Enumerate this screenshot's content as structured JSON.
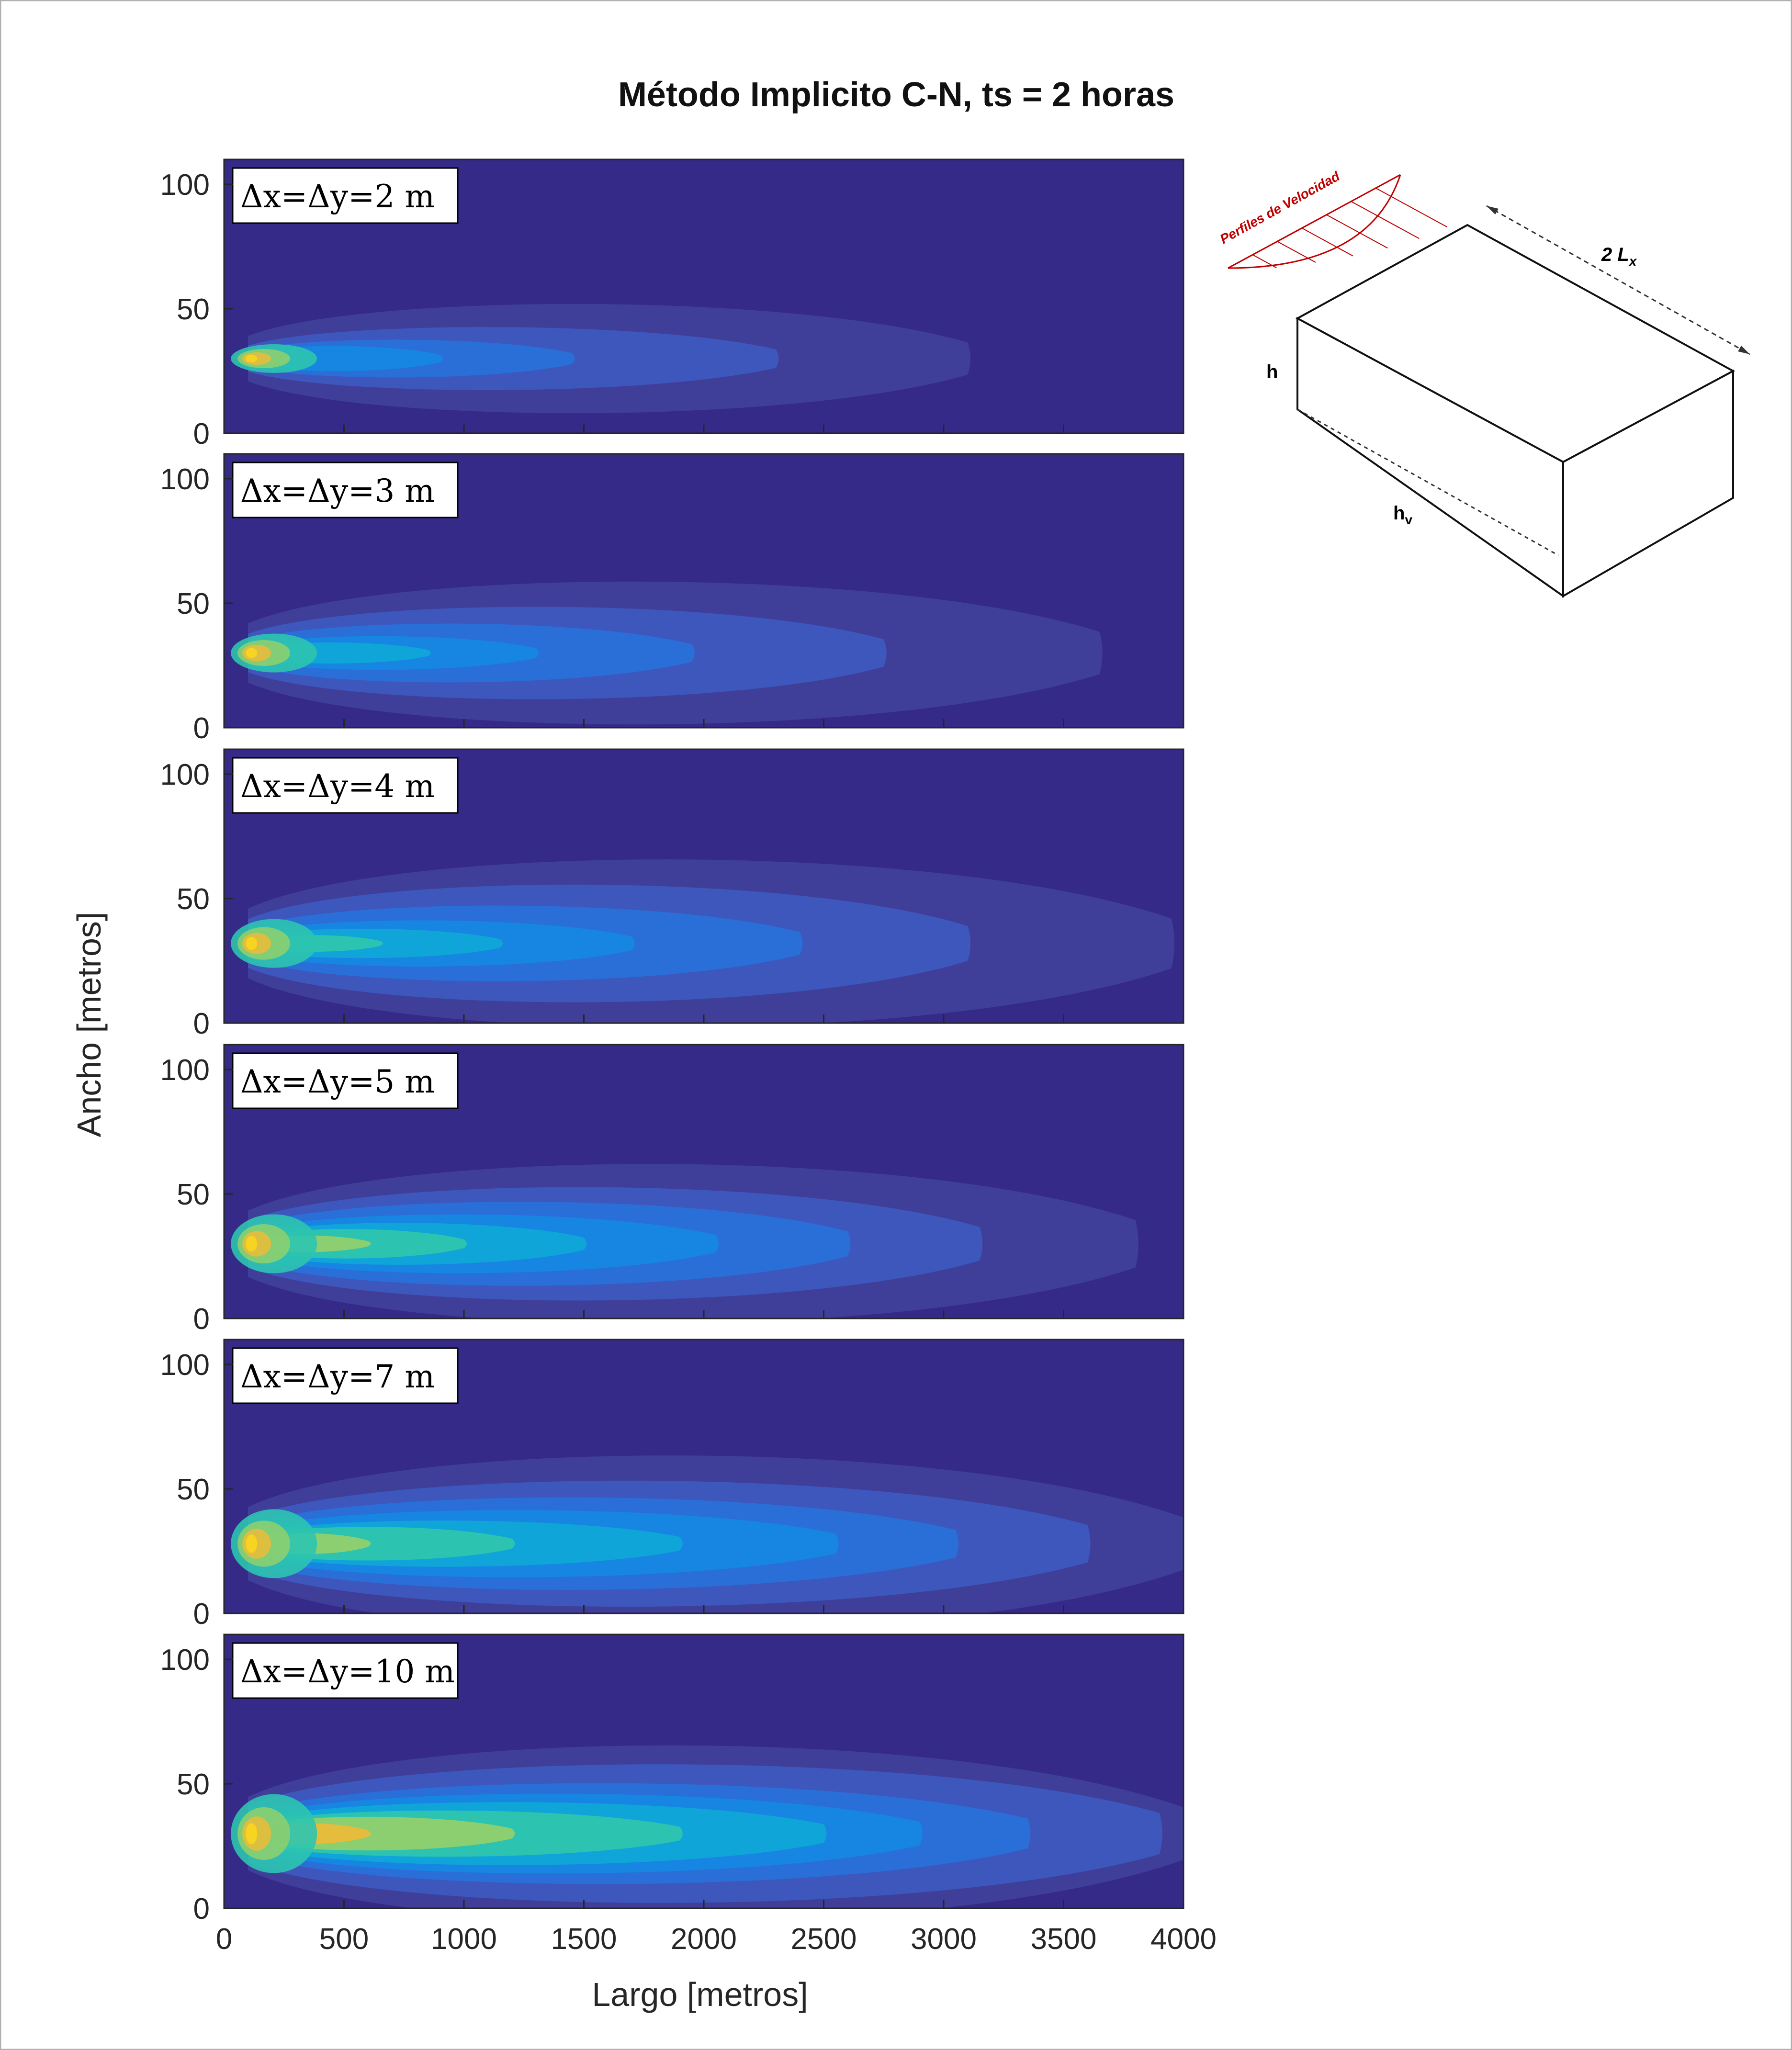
{
  "chart_data": {
    "type": "heatmap",
    "title": "Método Implicito C-N, ts = 2  horas",
    "xlabel": "Largo [metros]",
    "ylabel": "Ancho [metros]",
    "xlim": [
      0,
      4000
    ],
    "ylim": [
      0,
      110
    ],
    "xticks": [
      0,
      500,
      1000,
      1500,
      2000,
      2500,
      3000,
      3500,
      4000
    ],
    "yticks": [
      0,
      50,
      100
    ],
    "colormap": [
      "#352a87",
      "#3f3f9a",
      "#3d57bd",
      "#2a6fd8",
      "#1785e2",
      "#0fa5d8",
      "#2cc4b0",
      "#8bcf70",
      "#e6bc3c",
      "#f9d51f"
    ],
    "source": {
      "x": 100,
      "y": 30
    },
    "panels": [
      {
        "label": "Δx=Δy=2  m",
        "ymid": 30,
        "contours": [
          {
            "xend": 3100,
            "halfwidth": 26
          },
          {
            "xend": 2300,
            "halfwidth": 15
          },
          {
            "xend": 1450,
            "halfwidth": 9
          },
          {
            "xend": 900,
            "halfwidth": 6
          }
        ]
      },
      {
        "label": "Δx=Δy=3  m",
        "ymid": 30,
        "contours": [
          {
            "xend": 3650,
            "halfwidth": 34
          },
          {
            "xend": 2750,
            "halfwidth": 22
          },
          {
            "xend": 1950,
            "halfwidth": 14
          },
          {
            "xend": 1300,
            "halfwidth": 8
          },
          {
            "xend": 850,
            "halfwidth": 5
          }
        ]
      },
      {
        "label": "Δx=Δy=4  m",
        "ymid": 32,
        "contours": [
          {
            "xend": 3950,
            "halfwidth": 40
          },
          {
            "xend": 3100,
            "halfwidth": 28
          },
          {
            "xend": 2400,
            "halfwidth": 18
          },
          {
            "xend": 1700,
            "halfwidth": 11
          },
          {
            "xend": 1150,
            "halfwidth": 7
          },
          {
            "xend": 650,
            "halfwidth": 4
          }
        ]
      },
      {
        "label": "Δx=Δy=5  m",
        "ymid": 30,
        "contours": [
          {
            "xend": 3800,
            "halfwidth": 38
          },
          {
            "xend": 3150,
            "halfwidth": 27
          },
          {
            "xend": 2600,
            "halfwidth": 20
          },
          {
            "xend": 2050,
            "halfwidth": 14
          },
          {
            "xend": 1500,
            "halfwidth": 10
          },
          {
            "xend": 1000,
            "halfwidth": 7
          },
          {
            "xend": 600,
            "halfwidth": 4
          }
        ]
      },
      {
        "label": "Δx=Δy=7  m",
        "ymid": 28,
        "contours": [
          {
            "xend": 4000,
            "halfwidth": 42
          },
          {
            "xend": 3600,
            "halfwidth": 30
          },
          {
            "xend": 3050,
            "halfwidth": 22
          },
          {
            "xend": 2550,
            "halfwidth": 16
          },
          {
            "xend": 1900,
            "halfwidth": 11
          },
          {
            "xend": 1200,
            "halfwidth": 8
          },
          {
            "xend": 600,
            "halfwidth": 5
          }
        ]
      },
      {
        "label": "Δx=Δy=10  m",
        "ymid": 30,
        "contours": [
          {
            "xend": 4000,
            "halfwidth": 42
          },
          {
            "xend": 3900,
            "halfwidth": 33
          },
          {
            "xend": 3350,
            "halfwidth": 24
          },
          {
            "xend": 2900,
            "halfwidth": 19
          },
          {
            "xend": 2500,
            "halfwidth": 15
          },
          {
            "xend": 1900,
            "halfwidth": 11
          },
          {
            "xend": 1200,
            "halfwidth": 8
          },
          {
            "xend": 600,
            "halfwidth": 5
          }
        ]
      }
    ]
  },
  "diagram": {
    "profile_label": "Perfiles de Velocidad",
    "length_label": "2 L",
    "length_sub": "x",
    "height_label": "h",
    "depth_label": "h",
    "depth_sub": "v",
    "profile_color": "#c00000"
  }
}
